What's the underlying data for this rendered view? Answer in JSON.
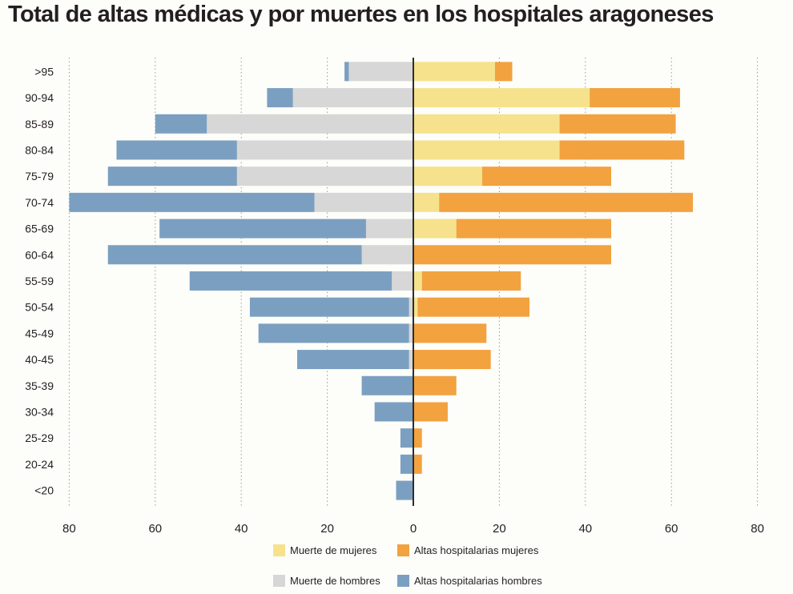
{
  "chart_data": {
    "type": "bar",
    "orientation": "horizontal",
    "layout": "diverging-stacked (population pyramid)",
    "title": "Total de altas médicas y por muertes en los hospitales aragoneses",
    "categories": [
      ">95",
      "90-94",
      "85-89",
      "80-84",
      "75-79",
      "70-74",
      "65-69",
      "60-64",
      "55-59",
      "50-54",
      "45-49",
      "40-45",
      "35-39",
      "30-34",
      "25-29",
      "20-24",
      "<20"
    ],
    "x_ticks": [
      "80",
      "60",
      "40",
      "20",
      "0",
      "20",
      "40",
      "60",
      "80"
    ],
    "xlim": [
      -80,
      80
    ],
    "grid": "vertical dotted",
    "legend_position": "bottom",
    "series": [
      {
        "name": "Muerte de mujeres",
        "side": "right",
        "color": "#f6e28c",
        "values": [
          19,
          41,
          34,
          34,
          16,
          6,
          10,
          0,
          2,
          1,
          0,
          0,
          0,
          0,
          0,
          0,
          0
        ]
      },
      {
        "name": "Altas hospitalarias mujeres",
        "side": "right",
        "color": "#f2a23f",
        "values": [
          4,
          21,
          27,
          29,
          30,
          59,
          36,
          46,
          23,
          26,
          17,
          18,
          10,
          8,
          2,
          2,
          0
        ]
      },
      {
        "name": "Muerte de hombres",
        "side": "left",
        "color": "#d7d7d7",
        "values": [
          15,
          28,
          48,
          41,
          41,
          23,
          11,
          12,
          5,
          1,
          1,
          1,
          0,
          0,
          0,
          0,
          0
        ]
      },
      {
        "name": "Altas hospitalarias hombres",
        "side": "left",
        "color": "#7b9fc1",
        "values": [
          1,
          6,
          12,
          28,
          30,
          57,
          48,
          59,
          47,
          37,
          35,
          26,
          12,
          9,
          3,
          3,
          4
        ]
      }
    ]
  },
  "legend": {
    "muerte_mujeres": "Muerte de mujeres",
    "altas_mujeres": "Altas hospitalarias mujeres",
    "muerte_hombres": "Muerte de hombres",
    "altas_hombres": "Altas hospitalarias hombres"
  }
}
